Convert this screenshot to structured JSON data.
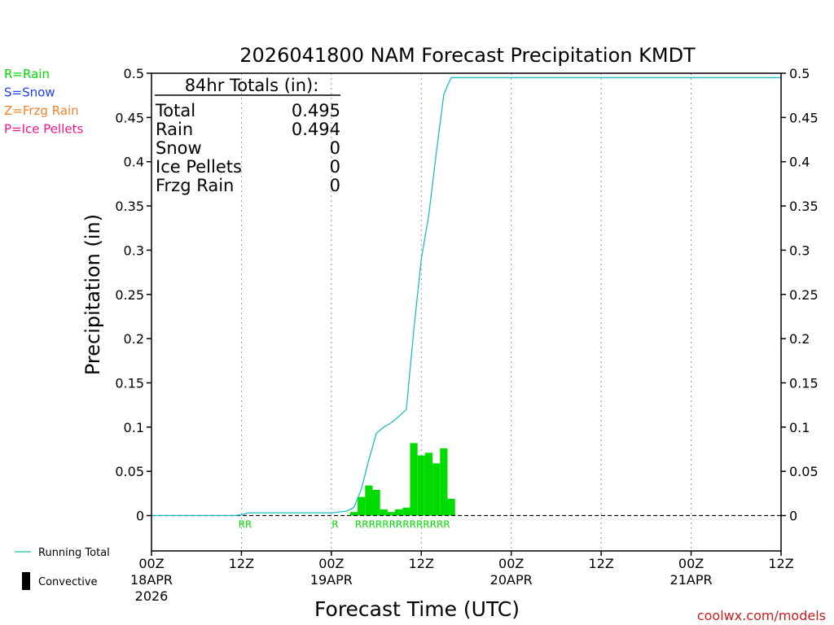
{
  "chart_data": {
    "type": "bar",
    "title": "2026041800 NAM Forecast Precipitation KMDT",
    "xlabel": "Forecast Time (UTC)",
    "ylabel": "Precipitation (in)",
    "ylim": [
      -0.04,
      0.5
    ],
    "xlim_hours": [
      0,
      84
    ],
    "grid": "vertical dotted at 12-hour ticks",
    "y_ticks": [
      "0.5",
      "0.45",
      "0.4",
      "0.35",
      "0.3",
      "0.25",
      "0.2",
      "0.15",
      "0.1",
      "0.05",
      "0"
    ],
    "x_ticks": [
      {
        "hour": 0,
        "line1": "00Z",
        "line2": "18APR",
        "line3": "2026"
      },
      {
        "hour": 12,
        "line1": "12Z",
        "line2": "",
        "line3": ""
      },
      {
        "hour": 24,
        "line1": "00Z",
        "line2": "19APR",
        "line3": ""
      },
      {
        "hour": 36,
        "line1": "12Z",
        "line2": "",
        "line3": ""
      },
      {
        "hour": 48,
        "line1": "00Z",
        "line2": "20APR",
        "line3": ""
      },
      {
        "hour": 60,
        "line1": "12Z",
        "line2": "",
        "line3": ""
      },
      {
        "hour": 72,
        "line1": "00Z",
        "line2": "21APR",
        "line3": ""
      },
      {
        "hour": 84,
        "line1": "12Z",
        "line2": "",
        "line3": ""
      }
    ],
    "bars_rain": {
      "hours": [
        27,
        28,
        29,
        30,
        31,
        32,
        33,
        34,
        35,
        36,
        37,
        38,
        39,
        40
      ],
      "values": [
        0.004,
        0.021,
        0.034,
        0.029,
        0.007,
        0.004,
        0.007,
        0.009,
        0.082,
        0.068,
        0.071,
        0.059,
        0.076,
        0.019
      ]
    },
    "running_total": {
      "hours": [
        0,
        11,
        12,
        13,
        24,
        26,
        27,
        28,
        29,
        30,
        31,
        32,
        33,
        34,
        35,
        36,
        37,
        38,
        39,
        39.5,
        40,
        84
      ],
      "values": [
        0,
        0,
        0.001,
        0.003,
        0.003,
        0.005,
        0.009,
        0.03,
        0.063,
        0.093,
        0.1,
        0.105,
        0.112,
        0.12,
        0.21,
        0.29,
        0.34,
        0.41,
        0.476,
        0.486,
        0.495,
        0.495
      ]
    },
    "ptype_markers": [
      {
        "hour": 12.5,
        "text": "RR"
      },
      {
        "hour": 24.5,
        "text": "R"
      },
      {
        "hour": 33.5,
        "text": "RRRRRRRRRRRRRR"
      }
    ],
    "totals_box": {
      "heading": "84hr Totals (in):",
      "rows": [
        {
          "label": "Total",
          "value": "0.495"
        },
        {
          "label": "Rain",
          "value": "0.494"
        },
        {
          "label": "Snow",
          "value": "0"
        },
        {
          "label": "Ice Pellets",
          "value": "0"
        },
        {
          "label": "Frzg Rain",
          "value": "0"
        }
      ]
    },
    "legend_top": [
      {
        "text": "R=Rain",
        "color": "#00dc00"
      },
      {
        "text": "S=Snow",
        "color": "#1e3cff"
      },
      {
        "text": "Z=Frzg Rain",
        "color": "#f08228"
      },
      {
        "text": "P=Ice Pellets",
        "color": "#f0148c"
      }
    ],
    "legend_bottom": [
      {
        "text": "Running Total",
        "kind": "line",
        "color": "#1ebebe"
      },
      {
        "text": "Convective",
        "kind": "bar",
        "color": "#000000"
      }
    ],
    "colors": {
      "rain_bar": "#00dc00",
      "running_total": "#1ebebe",
      "zero_line": "#000000"
    },
    "watermark": "coolwx.com/models"
  }
}
